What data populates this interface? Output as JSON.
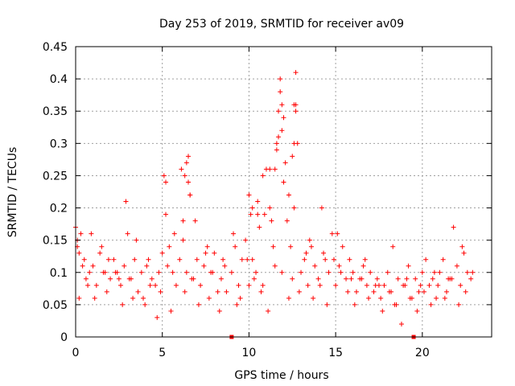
{
  "chart_data": {
    "type": "scatter",
    "title": "Day 253 of 2019, SRMTID for receiver av09",
    "xlabel": "GPS time / hours",
    "ylabel": "SRMTID / TECUs",
    "xlim": [
      0,
      24
    ],
    "ylim": [
      0,
      0.45
    ],
    "x_ticks": [
      0,
      5,
      10,
      15,
      20
    ],
    "x_tick_labels": [
      "0",
      "5",
      "10",
      "15",
      "20"
    ],
    "y_ticks": [
      0,
      0.05,
      0.1,
      0.15,
      0.2,
      0.25,
      0.3,
      0.35,
      0.4,
      0.45
    ],
    "y_tick_labels": [
      "0",
      "0.05",
      "0.1",
      "0.15",
      "0.2",
      "0.25",
      "0.3",
      "0.35",
      "0.4",
      "0.45"
    ],
    "grid": true,
    "marker": "plus",
    "color": "#ff0000",
    "outlier_markers": [
      {
        "x": 9.0,
        "y": 0.0
      },
      {
        "x": 19.5,
        "y": 0.0
      }
    ],
    "series": [
      {
        "name": "SRMTID",
        "x": [
          0.0,
          0.1,
          0.2,
          0.3,
          0.5,
          0.6,
          0.8,
          1.0,
          1.2,
          1.4,
          1.6,
          1.8,
          2.0,
          2.2,
          2.4,
          2.6,
          2.8,
          2.9,
          3.0,
          3.2,
          3.4,
          3.6,
          3.8,
          4.0,
          4.2,
          4.4,
          4.6,
          4.8,
          5.0,
          5.1,
          5.2,
          5.4,
          5.6,
          5.8,
          6.0,
          6.1,
          6.2,
          6.4,
          6.5,
          6.6,
          6.8,
          7.0,
          7.2,
          7.4,
          7.6,
          7.8,
          8.0,
          8.2,
          8.4,
          8.6,
          9.0,
          9.2,
          9.4,
          9.6,
          9.8,
          10.0,
          10.1,
          10.2,
          10.4,
          10.6,
          10.8,
          11.0,
          11.2,
          11.4,
          11.6,
          11.7,
          11.8,
          11.9,
          12.0,
          12.1,
          12.2,
          12.4,
          12.6,
          12.7,
          12.8,
          13.0,
          13.2,
          13.4,
          13.6,
          13.8,
          14.0,
          14.2,
          14.4,
          14.6,
          14.8,
          15.0,
          15.2,
          15.4,
          15.6,
          15.8,
          16.0,
          16.2,
          16.4,
          16.6,
          16.8,
          17.0,
          17.2,
          17.4,
          17.6,
          17.8,
          18.0,
          18.2,
          18.4,
          18.6,
          18.8,
          19.0,
          19.2,
          19.4,
          19.6,
          19.8,
          20.0,
          20.2,
          20.4,
          20.6,
          20.8,
          21.0,
          21.2,
          21.4,
          21.6,
          21.8,
          22.0,
          22.2,
          22.4,
          22.6,
          22.8,
          0.1,
          0.4,
          0.7,
          1.1,
          1.5,
          1.9,
          2.3,
          2.7,
          3.1,
          3.5,
          3.9,
          4.3,
          4.7,
          5.3,
          5.7,
          6.3,
          6.7,
          7.1,
          7.5,
          7.9,
          8.3,
          8.7,
          9.1,
          9.5,
          9.9,
          10.3,
          10.7,
          11.1,
          11.5,
          12.3,
          12.5,
          12.9,
          13.3,
          13.7,
          14.1,
          14.5,
          14.9,
          15.3,
          15.7,
          16.1,
          16.5,
          16.9,
          17.3,
          17.7,
          18.1,
          18.5,
          18.9,
          19.3,
          19.7,
          20.1,
          20.5,
          20.9,
          21.3,
          21.7,
          22.1,
          22.5,
          22.9,
          0.2,
          0.9,
          1.7,
          2.5,
          3.3,
          4.1,
          4.9,
          5.5,
          6.2,
          6.9,
          7.7,
          8.5,
          9.3,
          10.0,
          10.5,
          11.3,
          11.9,
          12.6,
          13.5,
          14.3,
          15.1,
          15.9,
          16.7,
          17.5,
          18.3,
          19.1,
          19.9,
          20.7,
          21.5,
          22.3,
          12.7,
          12.7,
          12.6,
          12.5,
          11.8,
          11.9,
          12.0,
          11.6,
          11.7,
          11.5,
          6.3,
          6.4,
          6.5,
          6.6,
          5.2,
          10.2,
          10.5,
          10.8,
          10.9,
          11.2,
          12.3
        ],
        "y": [
          0.17,
          0.14,
          0.13,
          0.16,
          0.12,
          0.09,
          0.1,
          0.11,
          0.08,
          0.13,
          0.1,
          0.07,
          0.09,
          0.12,
          0.1,
          0.08,
          0.11,
          0.21,
          0.16,
          0.09,
          0.12,
          0.07,
          0.1,
          0.05,
          0.12,
          0.09,
          0.08,
          0.1,
          0.13,
          0.25,
          0.19,
          0.14,
          0.1,
          0.08,
          0.12,
          0.26,
          0.18,
          0.1,
          0.28,
          0.22,
          0.09,
          0.12,
          0.08,
          0.11,
          0.14,
          0.1,
          0.13,
          0.07,
          0.09,
          0.11,
          0.1,
          0.14,
          0.08,
          0.12,
          0.15,
          0.22,
          0.19,
          0.12,
          0.1,
          0.17,
          0.08,
          0.26,
          0.2,
          0.14,
          0.29,
          0.35,
          0.4,
          0.32,
          0.24,
          0.27,
          0.18,
          0.14,
          0.36,
          0.41,
          0.3,
          0.1,
          0.12,
          0.08,
          0.14,
          0.11,
          0.09,
          0.2,
          0.12,
          0.1,
          0.16,
          0.08,
          0.11,
          0.14,
          0.09,
          0.12,
          0.1,
          0.07,
          0.09,
          0.11,
          0.08,
          0.1,
          0.07,
          0.09,
          0.06,
          0.08,
          0.1,
          0.07,
          0.05,
          0.09,
          0.02,
          0.08,
          0.11,
          0.06,
          0.09,
          0.07,
          0.1,
          0.12,
          0.08,
          0.09,
          0.06,
          0.1,
          0.12,
          0.07,
          0.09,
          0.17,
          0.11,
          0.08,
          0.13,
          0.1,
          0.09,
          0.15,
          0.11,
          0.08,
          0.06,
          0.14,
          0.12,
          0.1,
          0.05,
          0.09,
          0.15,
          0.06,
          0.08,
          0.03,
          0.11,
          0.16,
          0.07,
          0.09,
          0.05,
          0.13,
          0.1,
          0.04,
          0.07,
          0.16,
          0.06,
          0.12,
          0.09,
          0.07,
          0.04,
          0.11,
          0.06,
          0.09,
          0.07,
          0.13,
          0.06,
          0.08,
          0.05,
          0.12,
          0.1,
          0.07,
          0.05,
          0.09,
          0.06,
          0.08,
          0.04,
          0.07,
          0.05,
          0.08,
          0.06,
          0.04,
          0.07,
          0.05,
          0.08,
          0.06,
          0.09,
          0.05,
          0.07,
          0.1,
          0.06,
          0.16,
          0.1,
          0.09,
          0.06,
          0.11,
          0.07,
          0.04,
          0.15,
          0.18,
          0.06,
          0.12,
          0.05,
          0.08,
          0.19,
          0.18,
          0.1,
          0.2,
          0.15,
          0.13,
          0.16,
          0.09,
          0.12,
          0.08,
          0.14,
          0.09,
          0.08,
          0.1,
          0.09,
          0.14,
          0.36,
          0.35,
          0.3,
          0.28,
          0.38,
          0.36,
          0.34,
          0.3,
          0.31,
          0.26,
          0.25,
          0.27,
          0.24,
          0.22,
          0.24,
          0.2,
          0.21,
          0.25,
          0.19,
          0.26,
          0.22
        ]
      }
    ]
  }
}
